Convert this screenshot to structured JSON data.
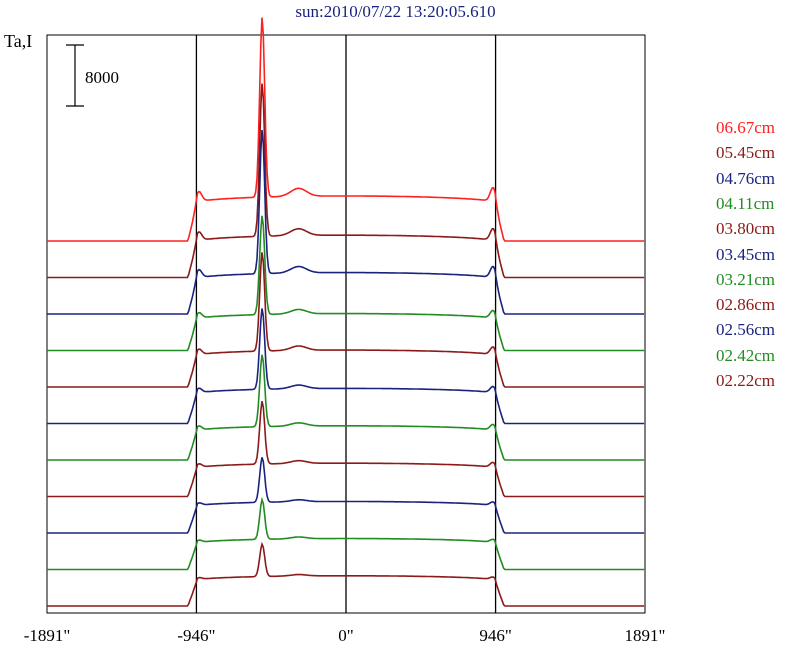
{
  "title": "sun:2010/07/22 13:20:05.610",
  "ylabel": "Ta,I",
  "scale_bar_label": "8000",
  "chart_data": {
    "type": "line",
    "title": "sun:2010/07/22 13:20:05.610",
    "ylabel": "Ta,I",
    "xlim": [
      -1891,
      1891
    ],
    "x_ticks": [
      "-1891\"",
      "-946\"",
      "0\"",
      "946\"",
      "1891\""
    ],
    "vertical_lines": [
      -946,
      0,
      946
    ],
    "scale_bar": 8000,
    "grid": false,
    "legend_position": "right",
    "series": [
      {
        "name": "06.67cm",
        "color": "#ff2020",
        "amp": 1.0
      },
      {
        "name": "05.45cm",
        "color": "#8b1a1a",
        "amp": 0.85
      },
      {
        "name": "04.76cm",
        "color": "#1a237e",
        "amp": 0.8
      },
      {
        "name": "04.11cm",
        "color": "#228b22",
        "amp": 0.55
      },
      {
        "name": "03.80cm",
        "color": "#8b1a1a",
        "amp": 0.55
      },
      {
        "name": "03.45cm",
        "color": "#1a237e",
        "amp": 0.45
      },
      {
        "name": "03.21cm",
        "color": "#228b22",
        "amp": 0.4
      },
      {
        "name": "02.86cm",
        "color": "#8b1a1a",
        "amp": 0.35
      },
      {
        "name": "02.56cm",
        "color": "#1a237e",
        "amp": 0.25
      },
      {
        "name": "02.42cm",
        "color": "#228b22",
        "amp": 0.22
      },
      {
        "name": "02.22cm",
        "color": "#8b1a1a",
        "amp": 0.18
      }
    ]
  }
}
